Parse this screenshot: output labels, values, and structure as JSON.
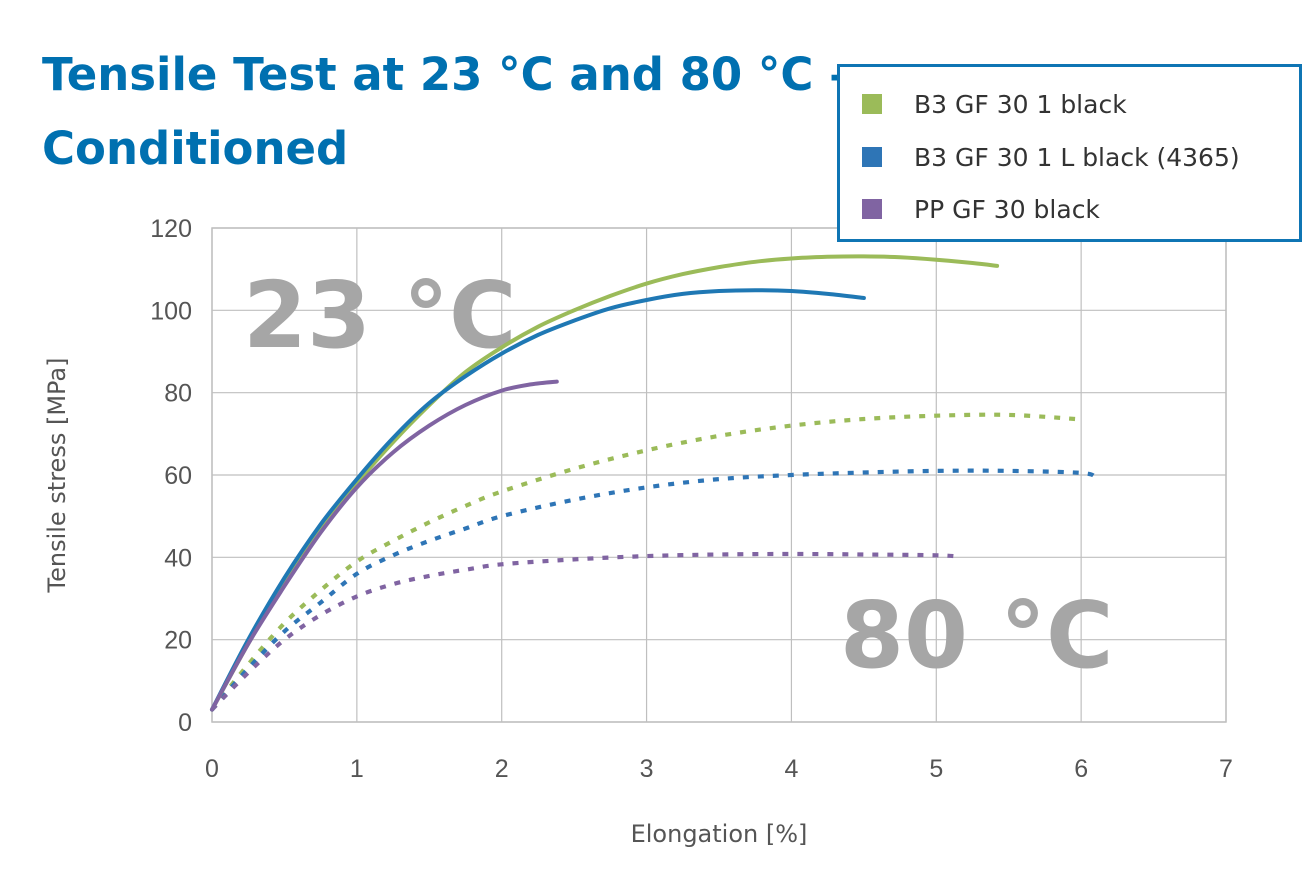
{
  "header": {
    "title_line1": "Tensile Test at 23 °C and 80 °C –",
    "title_line2": "Conditioned"
  },
  "colors": {
    "title": "#0070b0",
    "legend_border": "#0f75b4",
    "grid": "#bfbfbf",
    "annotation": "#a6a6a6"
  },
  "annotations": {
    "label_23": "23 °C",
    "label_80": "80 °C"
  },
  "chart_data": {
    "type": "line",
    "title": "Tensile Test at 23 °C and 80 °C – Conditioned",
    "xlabel": "Elongation [%]",
    "ylabel": "Tensile stress [MPa]",
    "xlim": [
      0,
      7
    ],
    "ylim": [
      0,
      120
    ],
    "xticks": [
      0,
      1,
      2,
      3,
      4,
      5,
      6,
      7
    ],
    "yticks": [
      0,
      20,
      40,
      60,
      80,
      100,
      120
    ],
    "grid": true,
    "legend_position": "top-right",
    "legend": [
      {
        "label": "B3 GF 30 1 black",
        "color": "#9bbb59"
      },
      {
        "label": "B3 GF 30 1 L black (4365)",
        "color": "#2e75b6"
      },
      {
        "label": "PP GF 30 black",
        "color": "#8064a2"
      }
    ],
    "series": [
      {
        "name": "B3 GF 30 1 black",
        "condition": "23 °C",
        "style": "solid",
        "color": "#9bbb59",
        "x": [
          0,
          0.25,
          0.5,
          0.75,
          1.0,
          1.25,
          1.5,
          1.75,
          2.0,
          2.25,
          2.5,
          2.75,
          3.0,
          3.25,
          3.5,
          3.75,
          4.0,
          4.25,
          4.5,
          4.75,
          5.0,
          5.25,
          5.42
        ],
        "y": [
          3,
          19,
          34,
          47,
          58,
          68,
          77,
          85,
          91,
          96,
          100,
          103.5,
          106.5,
          108.8,
          110.5,
          111.8,
          112.6,
          113.0,
          113.1,
          112.9,
          112.3,
          111.5,
          110.8
        ]
      },
      {
        "name": "B3 GF 30 1 L black (4365)",
        "condition": "23 °C",
        "style": "solid",
        "color": "#1f78b4",
        "x": [
          0,
          0.25,
          0.5,
          0.75,
          1.0,
          1.25,
          1.5,
          1.75,
          2.0,
          2.25,
          2.5,
          2.75,
          3.0,
          3.25,
          3.5,
          3.75,
          4.0,
          4.25,
          4.5
        ],
        "y": [
          3,
          20,
          35,
          48,
          59,
          69,
          77.5,
          84,
          89.5,
          94,
          97.5,
          100.5,
          102.5,
          104,
          104.7,
          104.9,
          104.7,
          104,
          103
        ]
      },
      {
        "name": "PP GF 30 black",
        "condition": "23 °C",
        "style": "solid",
        "color": "#8064a2",
        "x": [
          0,
          0.25,
          0.5,
          0.75,
          1.0,
          1.25,
          1.5,
          1.75,
          2.0,
          2.2,
          2.38
        ],
        "y": [
          3,
          19,
          33,
          46,
          57,
          65.5,
          72,
          77,
          80.5,
          82,
          82.7
        ]
      },
      {
        "name": "B3 GF 30 1 black",
        "condition": "80 °C",
        "style": "dotted",
        "color": "#9bbb59",
        "x": [
          0,
          0.25,
          0.5,
          0.75,
          1.0,
          1.25,
          1.5,
          1.75,
          2.0,
          2.5,
          3.0,
          3.5,
          4.0,
          4.5,
          5.0,
          5.5,
          6.0
        ],
        "y": [
          3,
          14,
          24,
          32,
          39,
          44,
          48.5,
          52.5,
          56,
          61.5,
          66,
          69.5,
          72,
          73.6,
          74.4,
          74.6,
          73.5
        ]
      },
      {
        "name": "B3 GF 30 1 L black (4365)",
        "condition": "80 °C",
        "style": "dotted",
        "color": "#2e75b6",
        "x": [
          0,
          0.25,
          0.5,
          0.75,
          1.0,
          1.25,
          1.5,
          1.75,
          2.0,
          2.5,
          3.0,
          3.5,
          4.0,
          4.5,
          5.0,
          5.5,
          6.0,
          6.1
        ],
        "y": [
          3,
          13,
          22,
          29,
          36,
          40.5,
          44,
          47,
          50,
          54,
          57,
          59,
          60,
          60.6,
          61,
          61,
          60.5,
          59.5
        ]
      },
      {
        "name": "PP GF 30 black",
        "condition": "80 °C",
        "style": "dotted",
        "color": "#8064a2",
        "x": [
          0,
          0.25,
          0.5,
          0.75,
          1.0,
          1.25,
          1.5,
          1.75,
          2.0,
          2.5,
          3.0,
          3.5,
          4.0,
          4.5,
          5.0,
          5.15
        ],
        "y": [
          3,
          12,
          20,
          26,
          30.5,
          33.5,
          35.5,
          37,
          38.3,
          39.5,
          40.3,
          40.7,
          40.8,
          40.7,
          40.5,
          40.2
        ]
      }
    ]
  }
}
